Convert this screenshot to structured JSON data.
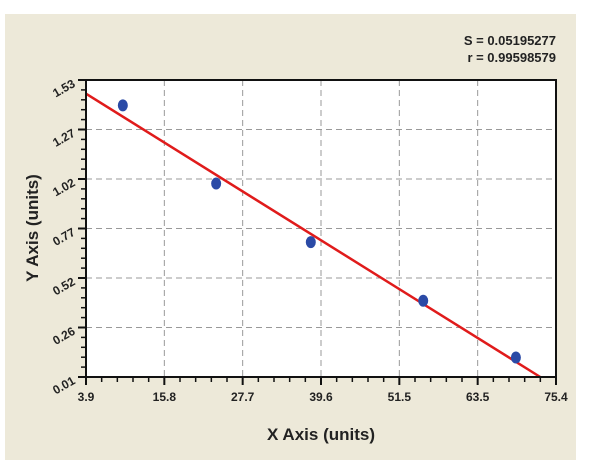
{
  "stats": {
    "s": "S = 0.05195277",
    "r": "r = 0.99598579"
  },
  "chart_data": {
    "type": "scatter",
    "title": "",
    "xlabel": "X Axis (units)",
    "ylabel": "Y Axis (units)",
    "xlim": [
      3.9,
      75.4
    ],
    "ylim": [
      0.01,
      1.53
    ],
    "xticks": [
      "3.9",
      "15.8",
      "27.7",
      "39.6",
      "51.5",
      "63.5",
      "75.4"
    ],
    "yticks": [
      "0.01",
      "0.26",
      "0.52",
      "0.77",
      "1.02",
      "1.27",
      "1.53"
    ],
    "grid": true,
    "points": {
      "x": [
        9.5,
        23.7,
        38.1,
        55.2,
        69.3
      ],
      "y": [
        1.4,
        1.0,
        0.7,
        0.4,
        0.11
      ]
    },
    "fit_line": {
      "x": [
        3.9,
        73.0
      ],
      "y": [
        1.46,
        0.01
      ]
    },
    "colors": {
      "points": "#2b4aa6",
      "line": "#e01b1b",
      "panel": "#ede9d9",
      "grid": "#999999"
    }
  }
}
